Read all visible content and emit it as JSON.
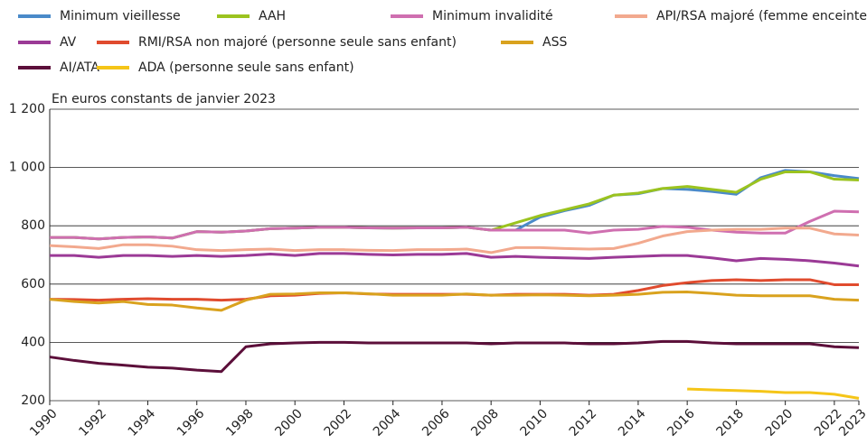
{
  "chart_data": {
    "type": "line",
    "y_label": "En euros constants de janvier 2023",
    "x": [
      1990,
      1991,
      1992,
      1993,
      1994,
      1995,
      1996,
      1997,
      1998,
      1999,
      2000,
      2001,
      2002,
      2003,
      2004,
      2005,
      2006,
      2007,
      2008,
      2009,
      2010,
      2011,
      2012,
      2013,
      2014,
      2015,
      2016,
      2017,
      2018,
      2019,
      2020,
      2021,
      2022,
      2023
    ],
    "xlim": [
      1990,
      2023
    ],
    "xticks": [
      1990,
      1992,
      1994,
      1996,
      1998,
      2000,
      2002,
      2004,
      2006,
      2008,
      2010,
      2012,
      2014,
      2016,
      2018,
      2020,
      2022,
      2023
    ],
    "ylim": [
      200,
      1200
    ],
    "yticks": [
      200,
      400,
      600,
      800,
      {
        "value": 1000,
        "label": "1 000"
      },
      {
        "value": 1200,
        "label": "1 200"
      }
    ],
    "grid": true,
    "series": [
      {
        "name": "Minimum vieillesse",
        "color": "#4a8ac9",
        "values": [
          760,
          760,
          755,
          760,
          762,
          758,
          780,
          778,
          782,
          790,
          792,
          795,
          795,
          793,
          792,
          793,
          793,
          795,
          785,
          785,
          830,
          852,
          870,
          905,
          910,
          928,
          925,
          918,
          908,
          965,
          990,
          985,
          972,
          962
        ]
      },
      {
        "name": "AAH",
        "color": "#9bc31f",
        "values": [
          760,
          760,
          755,
          760,
          762,
          758,
          780,
          778,
          782,
          790,
          792,
          795,
          795,
          793,
          792,
          793,
          793,
          795,
          785,
          810,
          835,
          855,
          875,
          905,
          912,
          928,
          935,
          925,
          915,
          960,
          985,
          985,
          960,
          957
        ]
      },
      {
        "name": "Minimum invalidité",
        "color": "#cf6fb0",
        "values": [
          760,
          760,
          755,
          760,
          762,
          758,
          780,
          778,
          782,
          790,
          792,
          795,
          795,
          793,
          792,
          793,
          793,
          795,
          785,
          785,
          785,
          785,
          775,
          785,
          788,
          798,
          795,
          785,
          778,
          775,
          775,
          815,
          850,
          848
        ]
      },
      {
        "name": "API/RSA majoré (femme enceinte sans enfant)",
        "color": "#f2a98e",
        "values": [
          732,
          728,
          722,
          735,
          735,
          730,
          718,
          715,
          718,
          720,
          715,
          718,
          718,
          716,
          715,
          718,
          718,
          720,
          708,
          725,
          725,
          722,
          720,
          722,
          740,
          765,
          780,
          785,
          788,
          788,
          792,
          792,
          772,
          768
        ]
      },
      {
        "name": "AV",
        "color": "#9b3a96",
        "values": [
          698,
          698,
          692,
          698,
          698,
          695,
          698,
          695,
          698,
          703,
          698,
          705,
          705,
          702,
          700,
          702,
          702,
          705,
          692,
          695,
          692,
          690,
          688,
          692,
          695,
          698,
          698,
          690,
          680,
          688,
          685,
          680,
          672,
          662
        ]
      },
      {
        "name": "RMI/RSA non majoré (personne seule sans enfant)",
        "color": "#e04b2e",
        "values": [
          548,
          547,
          545,
          548,
          550,
          548,
          548,
          545,
          548,
          560,
          562,
          568,
          570,
          566,
          565,
          565,
          565,
          565,
          562,
          565,
          565,
          565,
          562,
          565,
          578,
          595,
          605,
          612,
          615,
          612,
          615,
          615,
          598,
          598
        ]
      },
      {
        "name": "ASS",
        "color": "#d9a21e",
        "values": [
          548,
          540,
          535,
          540,
          530,
          528,
          518,
          510,
          545,
          565,
          566,
          570,
          570,
          567,
          562,
          562,
          562,
          566,
          562,
          562,
          563,
          562,
          560,
          562,
          565,
          572,
          573,
          568,
          562,
          560,
          560,
          560,
          548,
          545
        ]
      },
      {
        "name": "AI/ATA",
        "color": "#5c0f3a",
        "values": [
          350,
          338,
          328,
          322,
          315,
          312,
          305,
          300,
          385,
          395,
          398,
          400,
          400,
          398,
          398,
          398,
          398,
          398,
          395,
          398,
          398,
          398,
          395,
          395,
          398,
          403,
          403,
          398,
          395,
          395,
          395,
          395,
          385,
          382
        ]
      },
      {
        "name": "ADA (personne seule sans enfant)",
        "color": "#f5c518",
        "values": [
          null,
          null,
          null,
          null,
          null,
          null,
          null,
          null,
          null,
          null,
          null,
          null,
          null,
          null,
          null,
          null,
          null,
          null,
          null,
          null,
          null,
          null,
          null,
          null,
          null,
          null,
          240,
          237,
          235,
          232,
          228,
          228,
          222,
          208
        ]
      }
    ]
  }
}
